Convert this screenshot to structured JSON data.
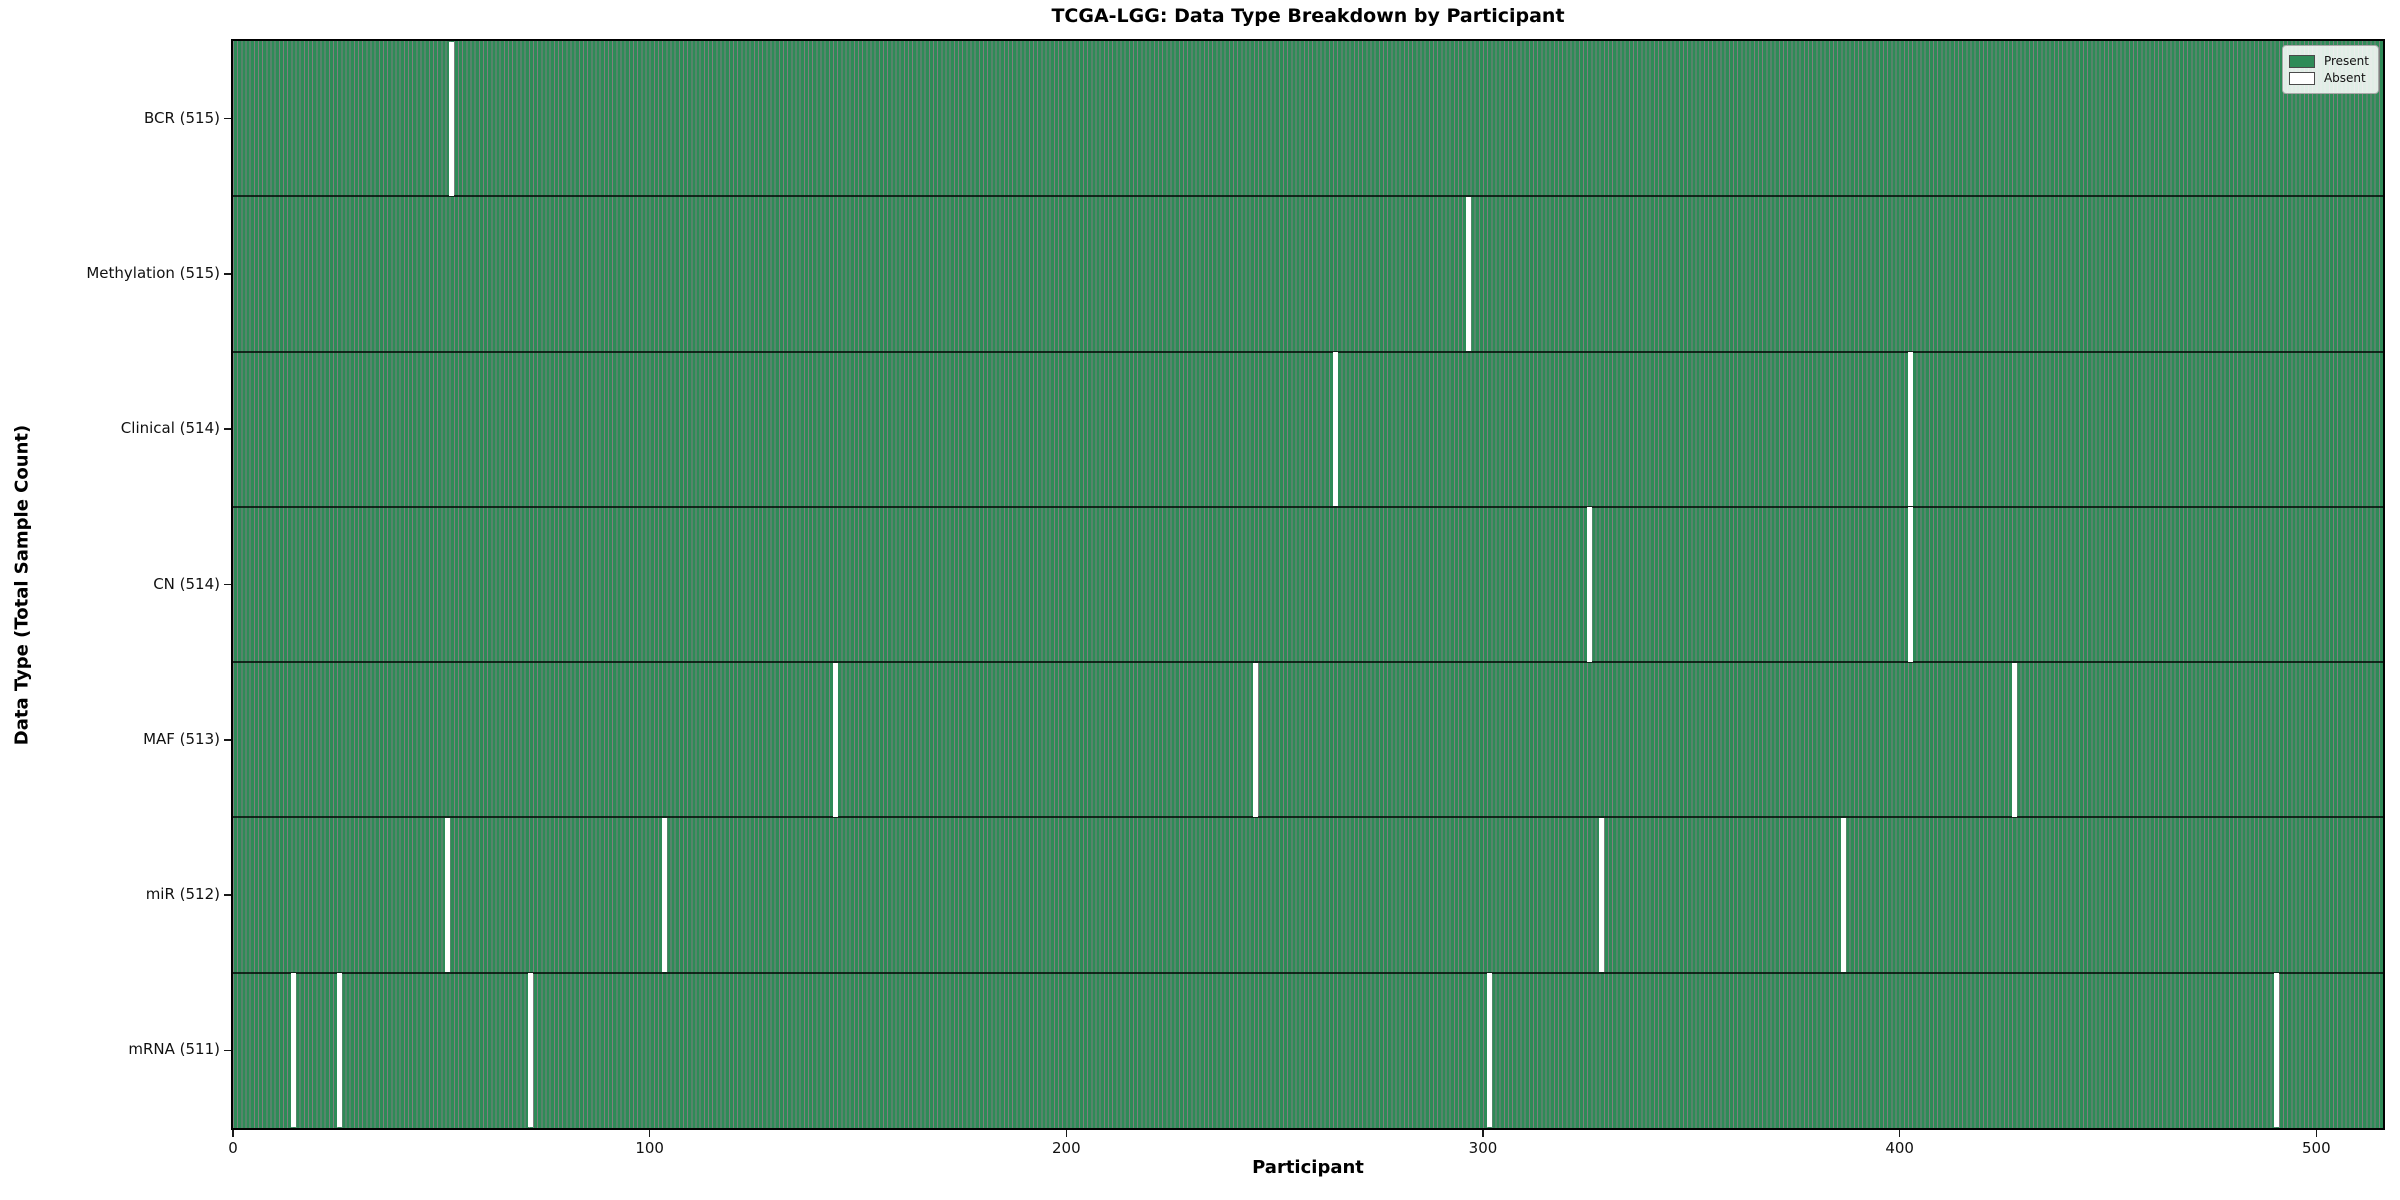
{
  "figure": {
    "title": "TCGA-LGG: Data Type Breakdown by Participant",
    "xlabel": "Participant",
    "ylabel": "Data Type (Total Sample Count)"
  },
  "legend": {
    "items": [
      {
        "label": "Present",
        "color": "#2e8b57"
      },
      {
        "label": "Absent",
        "color": "#ffffff"
      }
    ]
  },
  "chart_data": {
    "type": "heatmap",
    "title": "TCGA-LGG: Data Type Breakdown by Participant",
    "xlabel": "Participant",
    "ylabel": "Data Type (Total Sample Count)",
    "x_ticks": [
      0,
      100,
      200,
      300,
      400,
      500
    ],
    "xlim": [
      0,
      516
    ],
    "n_participants": 516,
    "present_color": "#2e8b57",
    "absent_color": "#ffffff",
    "bar_edge_color": "rgba(0,0,0,0.5)",
    "legend_position": "upper right",
    "grid": false,
    "rows": [
      {
        "label": "BCR (515)",
        "data_type": "BCR",
        "present_count": 515,
        "absent_count": 1,
        "absent_participants": [
          52
        ]
      },
      {
        "label": "Methylation (515)",
        "data_type": "Methylation",
        "present_count": 515,
        "absent_count": 1,
        "absent_participants": [
          296
        ]
      },
      {
        "label": "Clinical (514)",
        "data_type": "Clinical",
        "present_count": 514,
        "absent_count": 2,
        "absent_participants": [
          264,
          402
        ]
      },
      {
        "label": "CN (514)",
        "data_type": "CN",
        "present_count": 514,
        "absent_count": 2,
        "absent_participants": [
          325,
          402
        ]
      },
      {
        "label": "MAF (513)",
        "data_type": "MAF",
        "present_count": 513,
        "absent_count": 3,
        "absent_participants": [
          144,
          245,
          427
        ]
      },
      {
        "label": "miR (512)",
        "data_type": "miR",
        "present_count": 512,
        "absent_count": 4,
        "absent_participants": [
          51,
          103,
          328,
          386
        ]
      },
      {
        "label": "mRNA (511)",
        "data_type": "mRNA",
        "present_count": 511,
        "absent_count": 5,
        "absent_participants": [
          14,
          25,
          71,
          301,
          490
        ]
      }
    ]
  }
}
